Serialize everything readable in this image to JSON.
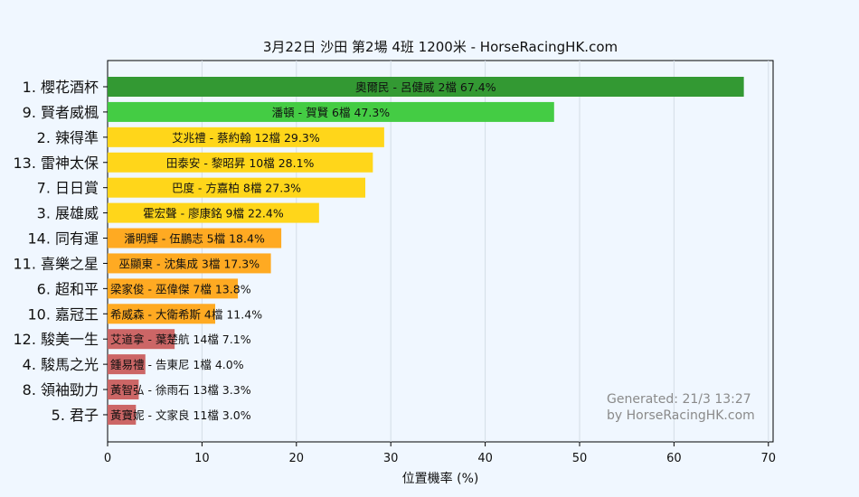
{
  "chart_data": {
    "type": "bar",
    "orientation": "horizontal",
    "title": "3月22日  沙田  第2場  4班  1200米 - HorseRacingHK.com",
    "xlabel": "位置機率 (%)",
    "ylabel": "",
    "xlim": [
      0,
      70.5
    ],
    "xticks": [
      0,
      10,
      20,
      30,
      40,
      50,
      60,
      70
    ],
    "grid": "vertical",
    "categories": [
      "1. 櫻花酒杯",
      "9. 賢者威楓",
      "2. 辣得準",
      "13. 雷神太保",
      "7. 日日賞",
      "3. 展雄威",
      "14. 同有運",
      "11. 喜樂之星",
      "6. 超和平",
      "10. 嘉冠王",
      "12. 駿美一生",
      "4. 駿馬之光",
      "8. 領袖勁力",
      "5. 君子"
    ],
    "values": [
      67.4,
      47.3,
      29.3,
      28.1,
      27.3,
      22.4,
      18.4,
      17.3,
      13.8,
      11.4,
      7.1,
      4.0,
      3.3,
      3.0
    ],
    "bar_labels": [
      "奧爾民 - 呂健威 2檔  67.4%",
      "潘頓 - 賀賢 6檔  47.3%",
      "艾兆禮 - 蔡約翰 12檔  29.3%",
      "田泰安 - 黎昭昇 10檔  28.1%",
      "巴度 - 方嘉柏 8檔  27.3%",
      "霍宏聲 - 廖康銘 9檔  22.4%",
      "潘明輝 - 伍鵬志 5檔  18.4%",
      "巫顯東 - 沈集成 3檔  17.3%",
      "梁家俊 - 巫偉傑 7檔  13.8%",
      "希威森 - 大衛希斯 4檔  11.4%",
      "艾道拿 - 葉楚航 14檔  7.1%",
      "鍾易禮 - 告東尼 1檔  4.0%",
      "黃智弘 - 徐雨石 13檔  3.3%",
      "黃寶妮 - 文家良 11檔  3.0%"
    ],
    "bar_colors": [
      "#339933",
      "#44cc44",
      "#ffd61a",
      "#ffd61a",
      "#ffd61a",
      "#ffd61a",
      "#ffaa22",
      "#ffaa22",
      "#ffaa22",
      "#ffaa22",
      "#cc6666",
      "#cc6666",
      "#cc6666",
      "#cc6666"
    ]
  },
  "watermark": {
    "line1": "Generated: 21/3 13:27",
    "line2": "by HorseRacingHK.com"
  }
}
